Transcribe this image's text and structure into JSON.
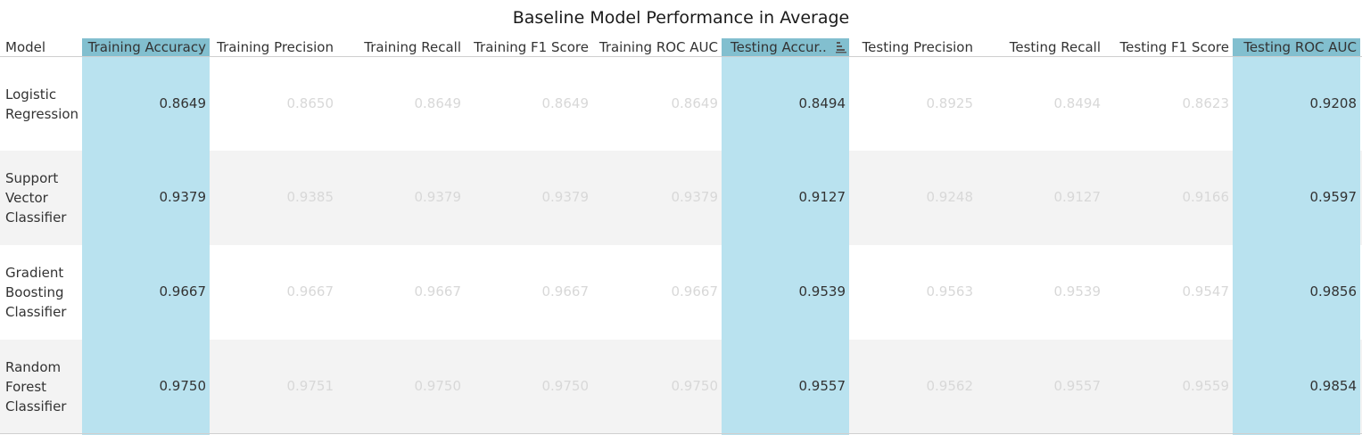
{
  "title": "Baseline Model Performance in Average",
  "columns": [
    {
      "label": "Model",
      "highlight": false
    },
    {
      "label": "Training Accuracy",
      "highlight": true
    },
    {
      "label": "Training Precision",
      "highlight": false
    },
    {
      "label": "Training Recall",
      "highlight": false
    },
    {
      "label": "Training F1 Score",
      "highlight": false
    },
    {
      "label": "Training ROC AUC",
      "highlight": false
    },
    {
      "label": "Testing Accur..",
      "highlight": true
    },
    {
      "label": "Testing Precision",
      "highlight": false
    },
    {
      "label": "Testing Recall",
      "highlight": false
    },
    {
      "label": "Testing F1 Score",
      "highlight": false
    },
    {
      "label": "Testing ROC AUC",
      "highlight": true
    }
  ],
  "sort_icon": "sort-descending-icon",
  "colors": {
    "highlight_column": "#b9e2ef",
    "highlight_header": "#82bfcf",
    "band": "#f3f3f3",
    "dim_text": "#d8d8d8",
    "text": "#333333"
  },
  "rows": [
    {
      "model_lines": [
        "Logistic",
        "Regression"
      ],
      "values": [
        "0.8649",
        "0.8650",
        "0.8649",
        "0.8649",
        "0.8649",
        "0.8494",
        "0.8925",
        "0.8494",
        "0.8623",
        "0.9208"
      ]
    },
    {
      "model_lines": [
        "Support",
        "Vector",
        "Classifier"
      ],
      "values": [
        "0.9379",
        "0.9385",
        "0.9379",
        "0.9379",
        "0.9379",
        "0.9127",
        "0.9248",
        "0.9127",
        "0.9166",
        "0.9597"
      ]
    },
    {
      "model_lines": [
        "Gradient",
        "Boosting",
        "Classifier"
      ],
      "values": [
        "0.9667",
        "0.9667",
        "0.9667",
        "0.9667",
        "0.9667",
        "0.9539",
        "0.9563",
        "0.9539",
        "0.9547",
        "0.9856"
      ]
    },
    {
      "model_lines": [
        "Random",
        "Forest",
        "Classifier"
      ],
      "values": [
        "0.9750",
        "0.9751",
        "0.9750",
        "0.9750",
        "0.9750",
        "0.9557",
        "0.9562",
        "0.9557",
        "0.9559",
        "0.9854"
      ]
    }
  ]
}
